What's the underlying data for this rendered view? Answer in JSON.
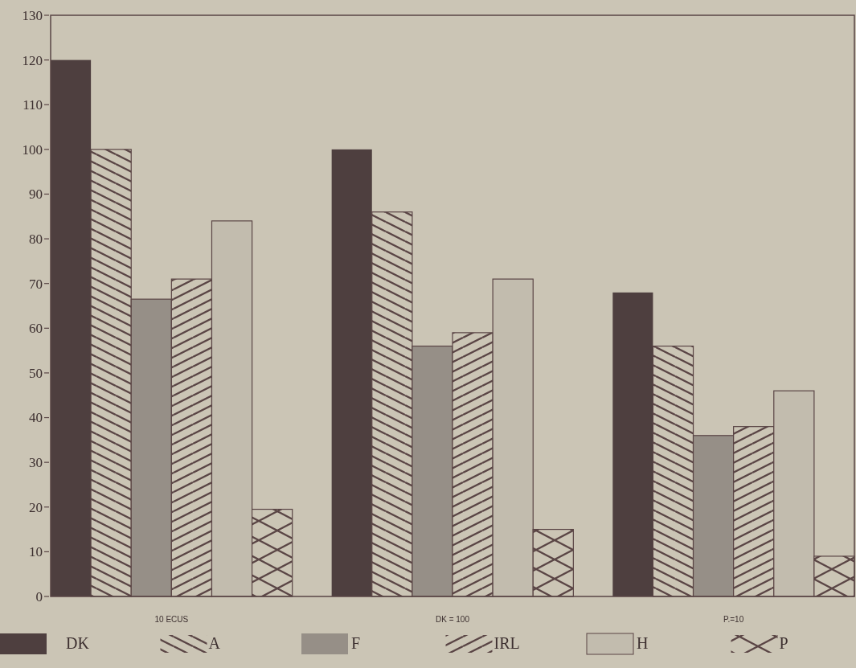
{
  "chart_data": {
    "type": "bar",
    "categories": [
      "10 ECUS",
      "DK = 100",
      "P.=10"
    ],
    "series": [
      {
        "name": "DK",
        "color": "#4e3f3f",
        "values": [
          120,
          100,
          68
        ]
      },
      {
        "name": "A",
        "color": "#5a4545",
        "values": [
          100,
          86,
          56
        ]
      },
      {
        "name": "F",
        "color": "#968f87",
        "values": [
          66.5,
          56,
          36
        ]
      },
      {
        "name": "IRL",
        "color": "#5a4545",
        "values": [
          71,
          59,
          38
        ]
      },
      {
        "name": "H",
        "color": "#c2bcae",
        "values": [
          84,
          71,
          46
        ]
      },
      {
        "name": "P",
        "color": "#5a4545",
        "values": [
          19.5,
          15,
          9
        ]
      }
    ],
    "ylim": [
      0,
      130
    ],
    "yticks": [
      0,
      10,
      20,
      30,
      40,
      50,
      60,
      70,
      80,
      90,
      100,
      110,
      120,
      130
    ],
    "grid": false,
    "legend": "bottom"
  }
}
